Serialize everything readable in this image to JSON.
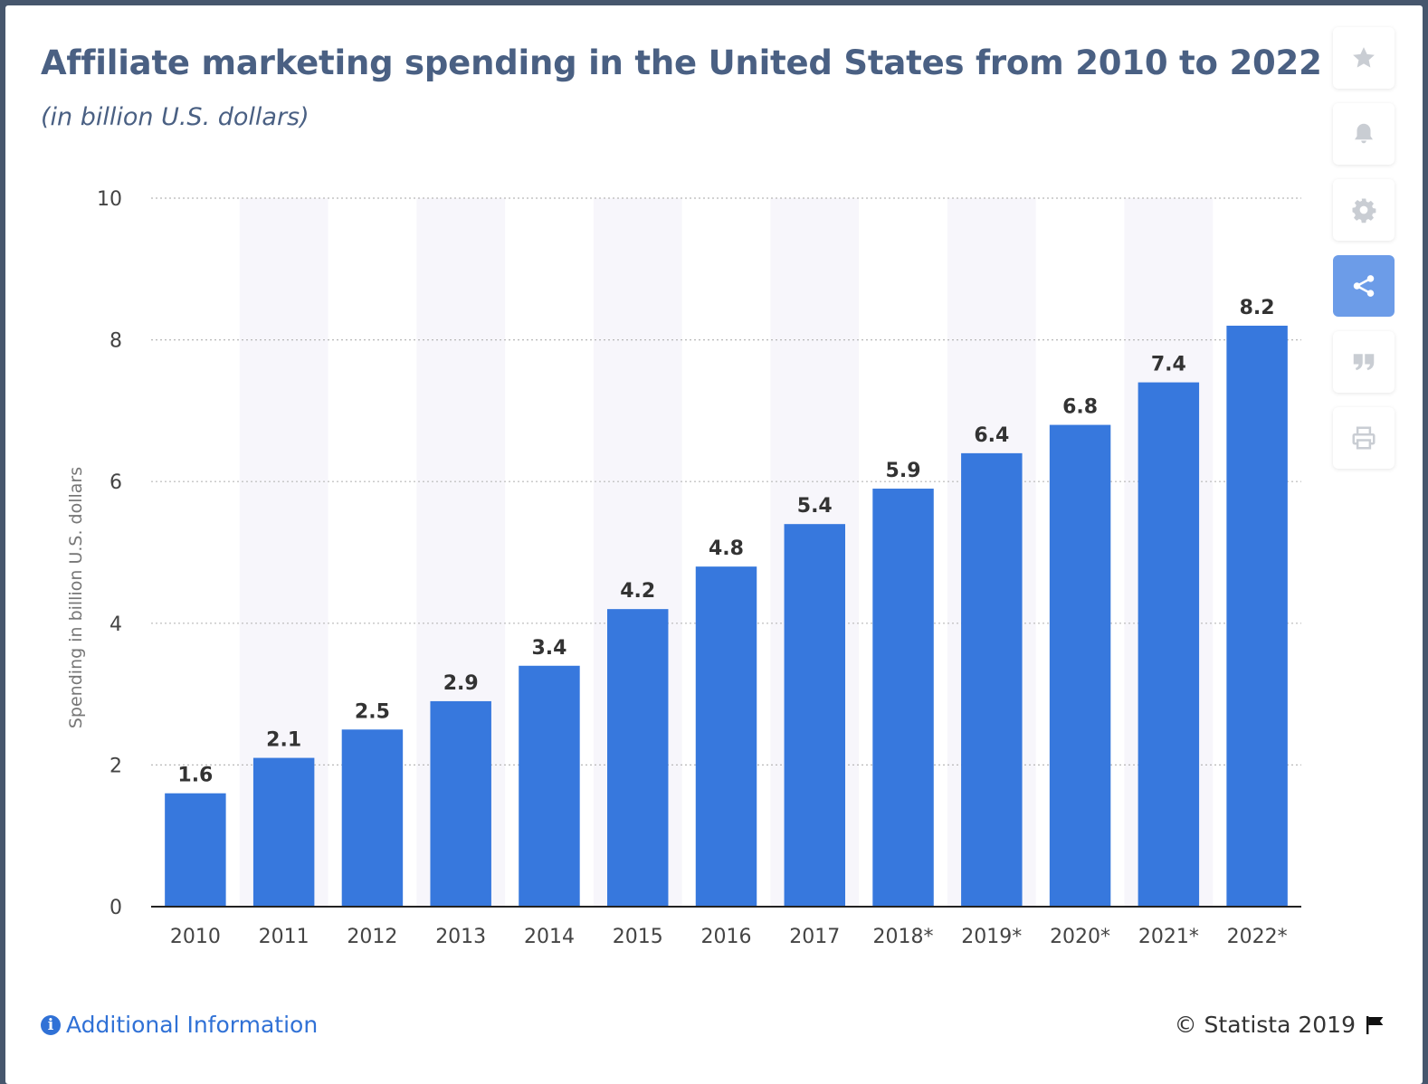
{
  "header": {
    "title": "Affiliate marketing spending in the United States from 2010 to 2022",
    "subtitle": "(in billion U.S. dollars)"
  },
  "toolbar": {
    "items": [
      {
        "name": "favorite-button",
        "icon": "star-icon",
        "active": false
      },
      {
        "name": "notification-button",
        "icon": "bell-icon",
        "active": false
      },
      {
        "name": "settings-button",
        "icon": "gear-icon",
        "active": false
      },
      {
        "name": "share-button",
        "icon": "share-icon",
        "active": true
      },
      {
        "name": "cite-button",
        "icon": "quote-icon",
        "active": false
      },
      {
        "name": "print-button",
        "icon": "print-icon",
        "active": false
      }
    ]
  },
  "chart_data": {
    "type": "bar",
    "title": "Affiliate marketing spending in the United States from 2010 to 2022",
    "subtitle": "(in billion U.S. dollars)",
    "xlabel": "",
    "ylabel": "Spending in billion U.S. dollars",
    "categories": [
      "2010",
      "2011",
      "2012",
      "2013",
      "2014",
      "2015",
      "2016",
      "2017",
      "2018*",
      "2019*",
      "2020*",
      "2021*",
      "2022*"
    ],
    "values": [
      1.6,
      2.1,
      2.5,
      2.9,
      3.4,
      4.2,
      4.8,
      5.4,
      5.9,
      6.4,
      6.8,
      7.4,
      8.2
    ],
    "value_labels": [
      "1.6",
      "2.1",
      "2.5",
      "2.9",
      "3.4",
      "4.2",
      "4.8",
      "5.4",
      "5.9",
      "6.4",
      "6.8",
      "7.4",
      "8.2"
    ],
    "ylim": [
      0,
      10
    ],
    "yticks": [
      0,
      2,
      4,
      6,
      8,
      10
    ],
    "grid": true,
    "legend": "none",
    "colors": {
      "bar": "#3778dd",
      "band": "#f7f6fb",
      "grid": "#b8b8b8",
      "axis": "#222222"
    }
  },
  "footer": {
    "info_label": "Additional Information",
    "copyright": "© Statista 2019"
  }
}
